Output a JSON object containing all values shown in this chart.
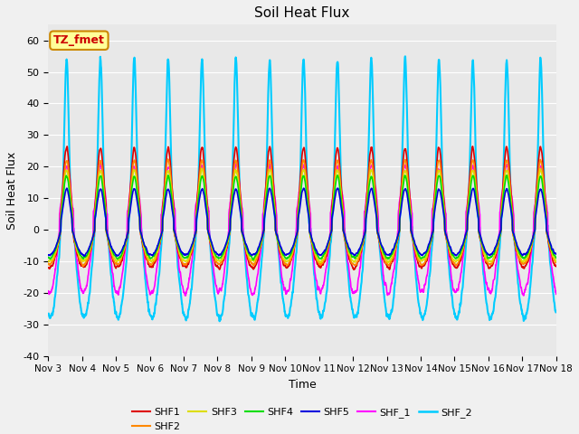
{
  "title": "Soil Heat Flux",
  "xlabel": "Time",
  "ylabel": "Soil Heat Flux",
  "xlim_days": [
    3,
    18
  ],
  "ylim": [
    -40,
    65
  ],
  "yticks": [
    -40,
    -30,
    -20,
    -10,
    0,
    10,
    20,
    30,
    40,
    50,
    60
  ],
  "xtick_labels": [
    "Nov 3",
    "Nov 4",
    "Nov 5",
    "Nov 6",
    "Nov 7",
    "Nov 8",
    "Nov 9",
    "Nov 10",
    "Nov 11",
    "Nov 12",
    "Nov 13",
    "Nov 14",
    "Nov 15",
    "Nov 16",
    "Nov 17",
    "Nov 18"
  ],
  "series_colors": {
    "SHF1": "#dd0000",
    "SHF2": "#ff8800",
    "SHF3": "#dddd00",
    "SHF4": "#00dd00",
    "SHF5": "#0000dd",
    "SHF_1": "#ff00ff",
    "SHF_2": "#00ccff"
  },
  "annotation_text": "TZ_fmet",
  "annotation_color": "#cc0000",
  "annotation_bg": "#ffff99",
  "annotation_border": "#cc8800",
  "fig_bg": "#f0f0f0",
  "plot_bg": "#e8e8e8",
  "grid_color": "#ffffff",
  "num_points": 2160,
  "days": 15
}
